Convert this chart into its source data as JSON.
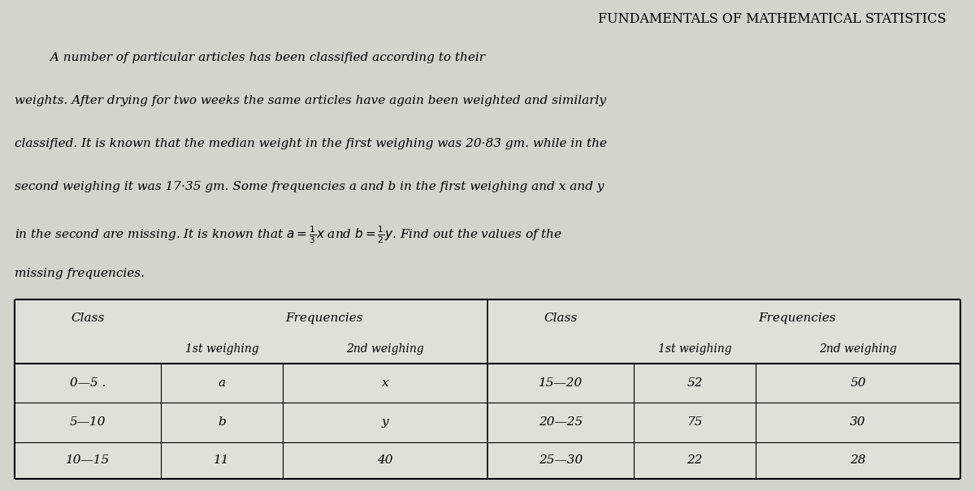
{
  "title": "FUNDAMENTALS OF MATHEMATICAL STATISTICS",
  "background_color": "#d4d4cc",
  "table_bg": "#e0e0d8",
  "rows_left": [
    [
      "0—5 .",
      "a",
      "x"
    ],
    [
      "5—10",
      "b",
      "y"
    ],
    [
      "10—15",
      "11",
      "40"
    ]
  ],
  "rows_right": [
    [
      "15—20",
      "52",
      "50"
    ],
    [
      "20—25",
      "75",
      "30"
    ],
    [
      "25—30",
      "22",
      "28"
    ]
  ],
  "paragraph_line1": "         A number of particular articles has been classified according to their",
  "paragraph_line2": "weights. After drying for two weeks the same articles have again been weighted and similarly",
  "paragraph_line3": "classified. It is known that the median weight in the first weighing was 20·83 gm. while in the",
  "paragraph_line4": "second weighing it was 17·35 gm. Some frequencies a and b in the first weighing and x and y",
  "paragraph_line6": "missing frequencies."
}
